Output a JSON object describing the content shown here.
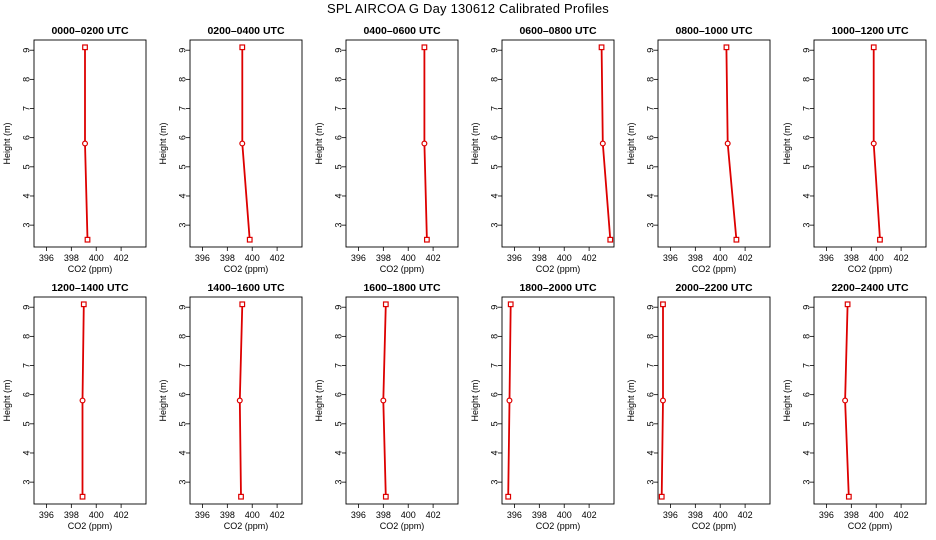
{
  "figure": {
    "title": "SPL AIRCOA G  Day 130612  Calibrated Profiles"
  },
  "axes_common": {
    "xlabel": "CO2 (ppm)",
    "ylabel": "Height (m)",
    "xlim": [
      395,
      404
    ],
    "ylim": [
      2.25,
      9.35
    ],
    "xticks": [
      396,
      398,
      400,
      402
    ],
    "yticks": [
      3,
      4,
      5,
      6,
      7,
      8,
      9
    ],
    "line_color": "#dd0000",
    "frame_color": "#000000"
  },
  "chart_data": [
    {
      "type": "line",
      "title": "0000–0200 UTC",
      "xlabel": "CO2 (ppm)",
      "ylabel": "Height (m)",
      "xlim": [
        395,
        404
      ],
      "ylim": [
        2.25,
        9.35
      ],
      "series": [
        {
          "x": [
            399.1,
            399.1,
            399.3
          ],
          "y": [
            9.1,
            5.8,
            2.5
          ]
        }
      ]
    },
    {
      "type": "line",
      "title": "0200–0400 UTC",
      "xlabel": "CO2 (ppm)",
      "ylabel": "Height (m)",
      "xlim": [
        395,
        404
      ],
      "ylim": [
        2.25,
        9.35
      ],
      "series": [
        {
          "x": [
            399.2,
            399.2,
            399.8
          ],
          "y": [
            9.1,
            5.8,
            2.5
          ]
        }
      ]
    },
    {
      "type": "line",
      "title": "0400–0600 UTC",
      "xlabel": "CO2 (ppm)",
      "ylabel": "Height (m)",
      "xlim": [
        395,
        404
      ],
      "ylim": [
        2.25,
        9.35
      ],
      "series": [
        {
          "x": [
            401.3,
            401.3,
            401.5
          ],
          "y": [
            9.1,
            5.8,
            2.5
          ]
        }
      ]
    },
    {
      "type": "line",
      "title": "0600–0800 UTC",
      "xlabel": "CO2 (ppm)",
      "ylabel": "Height (m)",
      "xlim": [
        395,
        404
      ],
      "ylim": [
        2.25,
        9.35
      ],
      "series": [
        {
          "x": [
            403.0,
            403.1,
            403.7
          ],
          "y": [
            9.1,
            5.8,
            2.5
          ]
        }
      ]
    },
    {
      "type": "line",
      "title": "0800–1000 UTC",
      "xlabel": "CO2 (ppm)",
      "ylabel": "Height (m)",
      "xlim": [
        395,
        404
      ],
      "ylim": [
        2.25,
        9.35
      ],
      "series": [
        {
          "x": [
            400.5,
            400.6,
            401.3
          ],
          "y": [
            9.1,
            5.8,
            2.5
          ]
        }
      ]
    },
    {
      "type": "line",
      "title": "1000–1200 UTC",
      "xlabel": "CO2 (ppm)",
      "ylabel": "Height (m)",
      "xlim": [
        395,
        404
      ],
      "ylim": [
        2.25,
        9.35
      ],
      "series": [
        {
          "x": [
            399.8,
            399.8,
            400.3
          ],
          "y": [
            9.1,
            5.8,
            2.5
          ]
        }
      ]
    },
    {
      "type": "line",
      "title": "1200–1400 UTC",
      "xlabel": "CO2 (ppm)",
      "ylabel": "Height (m)",
      "xlim": [
        395,
        404
      ],
      "ylim": [
        2.25,
        9.35
      ],
      "series": [
        {
          "x": [
            399.0,
            398.9,
            398.9
          ],
          "y": [
            9.1,
            5.8,
            2.5
          ]
        }
      ]
    },
    {
      "type": "line",
      "title": "1400–1600 UTC",
      "xlabel": "CO2 (ppm)",
      "ylabel": "Height (m)",
      "xlim": [
        395,
        404
      ],
      "ylim": [
        2.25,
        9.35
      ],
      "series": [
        {
          "x": [
            399.2,
            399.0,
            399.1
          ],
          "y": [
            9.1,
            5.8,
            2.5
          ]
        }
      ]
    },
    {
      "type": "line",
      "title": "1600–1800 UTC",
      "xlabel": "CO2 (ppm)",
      "ylabel": "Height (m)",
      "xlim": [
        395,
        404
      ],
      "ylim": [
        2.25,
        9.35
      ],
      "series": [
        {
          "x": [
            398.2,
            398.0,
            398.2
          ],
          "y": [
            9.1,
            5.8,
            2.5
          ]
        }
      ]
    },
    {
      "type": "line",
      "title": "1800–2000 UTC",
      "xlabel": "CO2 (ppm)",
      "ylabel": "Height (m)",
      "xlim": [
        395,
        404
      ],
      "ylim": [
        2.25,
        9.35
      ],
      "series": [
        {
          "x": [
            395.7,
            395.6,
            395.5
          ],
          "y": [
            9.1,
            5.8,
            2.5
          ]
        }
      ]
    },
    {
      "type": "line",
      "title": "2000–2200 UTC",
      "xlabel": "CO2 (ppm)",
      "ylabel": "Height (m)",
      "xlim": [
        395,
        404
      ],
      "ylim": [
        2.25,
        9.35
      ],
      "series": [
        {
          "x": [
            395.4,
            395.4,
            395.3
          ],
          "y": [
            9.1,
            5.8,
            2.5
          ]
        }
      ]
    },
    {
      "type": "line",
      "title": "2200–2400 UTC",
      "xlabel": "CO2 (ppm)",
      "ylabel": "Height (m)",
      "xlim": [
        395,
        404
      ],
      "ylim": [
        2.25,
        9.35
      ],
      "series": [
        {
          "x": [
            397.7,
            397.5,
            397.8
          ],
          "y": [
            9.1,
            5.8,
            2.5
          ]
        }
      ]
    }
  ]
}
